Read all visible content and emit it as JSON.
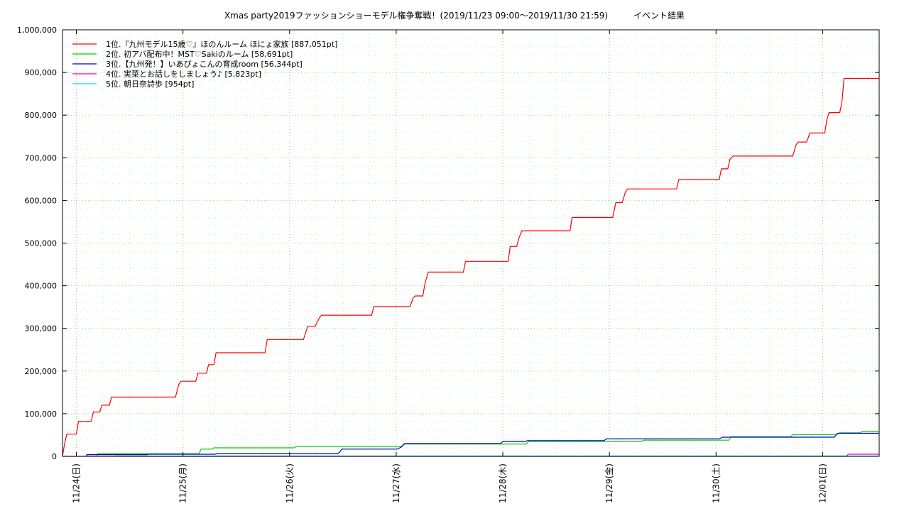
{
  "chart_data": {
    "type": "line",
    "title": "Xmas party2019ファッションショーモデル権争奪戦！(2019/11/23 09:00～2019/11/30 21:59)　　　イベント結果",
    "xlabel": "",
    "ylabel": "",
    "xlim": [
      -0.13,
      7.53
    ],
    "ylim": [
      0,
      1000000
    ],
    "y_max_shown": 1000000,
    "y_ticks": [
      0,
      100000,
      200000,
      300000,
      400000,
      500000,
      600000,
      700000,
      800000,
      900000,
      1000000
    ],
    "y_tick_labels": [
      "0",
      "100,000",
      "200,000",
      "300,000",
      "400,000",
      "500,000",
      "600,000",
      "700,000",
      "800,000",
      "900,000",
      "1,000,000"
    ],
    "x_ticks": [
      0,
      1,
      2,
      3,
      4,
      5,
      6,
      7
    ],
    "x_tick_labels": [
      "11/24(日)",
      "11/25(月)",
      "11/26(火)",
      "11/27(水)",
      "11/28(木)",
      "11/29(金)",
      "11/30(土)",
      "12/01(日)"
    ],
    "grid": true,
    "legend_position": "top-left",
    "series": [
      {
        "name": "1位.『九州モデル15歳♡』ほのんルーム ほにょ家族 [887,051pt]",
        "color": "#ff0000",
        "points": [
          [
            -0.13,
            0
          ],
          [
            -0.11,
            30000
          ],
          [
            -0.09,
            52000
          ],
          [
            0.0,
            52000
          ],
          [
            0.02,
            82000
          ],
          [
            0.14,
            82000
          ],
          [
            0.16,
            104000
          ],
          [
            0.22,
            104000
          ],
          [
            0.24,
            120000
          ],
          [
            0.31,
            120000
          ],
          [
            0.33,
            139000
          ],
          [
            0.93,
            139000
          ],
          [
            0.96,
            168000
          ],
          [
            0.98,
            176000
          ],
          [
            1.12,
            176000
          ],
          [
            1.14,
            195000
          ],
          [
            1.22,
            195000
          ],
          [
            1.24,
            215000
          ],
          [
            1.29,
            215000
          ],
          [
            1.31,
            243000
          ],
          [
            1.77,
            243000
          ],
          [
            1.79,
            274000
          ],
          [
            2.13,
            274000
          ],
          [
            2.17,
            305000
          ],
          [
            2.24,
            305000
          ],
          [
            2.28,
            325000
          ],
          [
            2.3,
            331000
          ],
          [
            2.77,
            331000
          ],
          [
            2.79,
            351000
          ],
          [
            3.13,
            351000
          ],
          [
            3.16,
            372000
          ],
          [
            3.18,
            376000
          ],
          [
            3.25,
            376000
          ],
          [
            3.27,
            405000
          ],
          [
            3.3,
            432000
          ],
          [
            3.63,
            432000
          ],
          [
            3.65,
            457000
          ],
          [
            4.05,
            457000
          ],
          [
            4.07,
            492000
          ],
          [
            4.13,
            492000
          ],
          [
            4.15,
            512000
          ],
          [
            4.18,
            529000
          ],
          [
            4.63,
            529000
          ],
          [
            4.65,
            560000
          ],
          [
            5.03,
            560000
          ],
          [
            5.06,
            595000
          ],
          [
            5.12,
            595000
          ],
          [
            5.15,
            620000
          ],
          [
            5.17,
            627000
          ],
          [
            5.63,
            627000
          ],
          [
            5.65,
            649000
          ],
          [
            6.03,
            649000
          ],
          [
            6.05,
            674000
          ],
          [
            6.11,
            674000
          ],
          [
            6.13,
            696000
          ],
          [
            6.16,
            704000
          ],
          [
            6.72,
            704000
          ],
          [
            6.75,
            730000
          ],
          [
            6.77,
            737000
          ],
          [
            6.85,
            737000
          ],
          [
            6.88,
            758000
          ],
          [
            7.02,
            758000
          ],
          [
            7.04,
            790000
          ],
          [
            7.06,
            806000
          ],
          [
            7.16,
            806000
          ],
          [
            7.18,
            830000
          ],
          [
            7.2,
            886000
          ],
          [
            7.53,
            886000
          ]
        ]
      },
      {
        "name": "2位. 初アバ配布中！MST♡Sakiのルーム [58,691pt]",
        "color": "#00cc00",
        "points": [
          [
            0.19,
            0
          ],
          [
            0.2,
            6000
          ],
          [
            1.15,
            6000
          ],
          [
            1.17,
            17000
          ],
          [
            1.27,
            17000
          ],
          [
            1.29,
            20000
          ],
          [
            2.04,
            20000
          ],
          [
            2.06,
            23000
          ],
          [
            3.05,
            23000
          ],
          [
            3.07,
            29000
          ],
          [
            4.22,
            29000
          ],
          [
            4.24,
            35000
          ],
          [
            5.3,
            35000
          ],
          [
            5.32,
            38000
          ],
          [
            6.12,
            38000
          ],
          [
            6.14,
            46000
          ],
          [
            6.7,
            46000
          ],
          [
            6.72,
            51000
          ],
          [
            7.13,
            51000
          ],
          [
            7.16,
            55000
          ],
          [
            7.35,
            55000
          ],
          [
            7.37,
            58000
          ],
          [
            7.53,
            58000
          ]
        ]
      },
      {
        "name": "3位.【九州発！】いあぴょこんの育成room [56,344pt]",
        "color": "#0000bb",
        "points": [
          [
            0.09,
            0
          ],
          [
            0.1,
            4000
          ],
          [
            0.66,
            4000
          ],
          [
            0.68,
            5000
          ],
          [
            1.3,
            5000
          ],
          [
            1.32,
            6000
          ],
          [
            2.45,
            6000
          ],
          [
            2.47,
            10000
          ],
          [
            2.49,
            17000
          ],
          [
            3.01,
            17000
          ],
          [
            3.05,
            22000
          ],
          [
            3.08,
            30000
          ],
          [
            3.98,
            30000
          ],
          [
            4.0,
            35000
          ],
          [
            4.21,
            35000
          ],
          [
            4.23,
            37000
          ],
          [
            4.95,
            37000
          ],
          [
            4.97,
            41000
          ],
          [
            6.03,
            41000
          ],
          [
            6.06,
            45000
          ],
          [
            7.11,
            45000
          ],
          [
            7.14,
            54000
          ],
          [
            7.53,
            54000
          ]
        ]
      },
      {
        "name": "4位. 実菜とお話しをしましょう♪ [5,823pt]",
        "color": "#dd00dd",
        "points": [
          [
            -0.13,
            0
          ],
          [
            7.22,
            0
          ],
          [
            7.24,
            5000
          ],
          [
            7.53,
            5000
          ]
        ]
      },
      {
        "name": "5位. 朝日奈詩歩 [954pt]",
        "color": "#00dddd",
        "points": [
          [
            0.35,
            0
          ],
          [
            0.36,
            900
          ],
          [
            7.53,
            900
          ]
        ]
      }
    ]
  }
}
